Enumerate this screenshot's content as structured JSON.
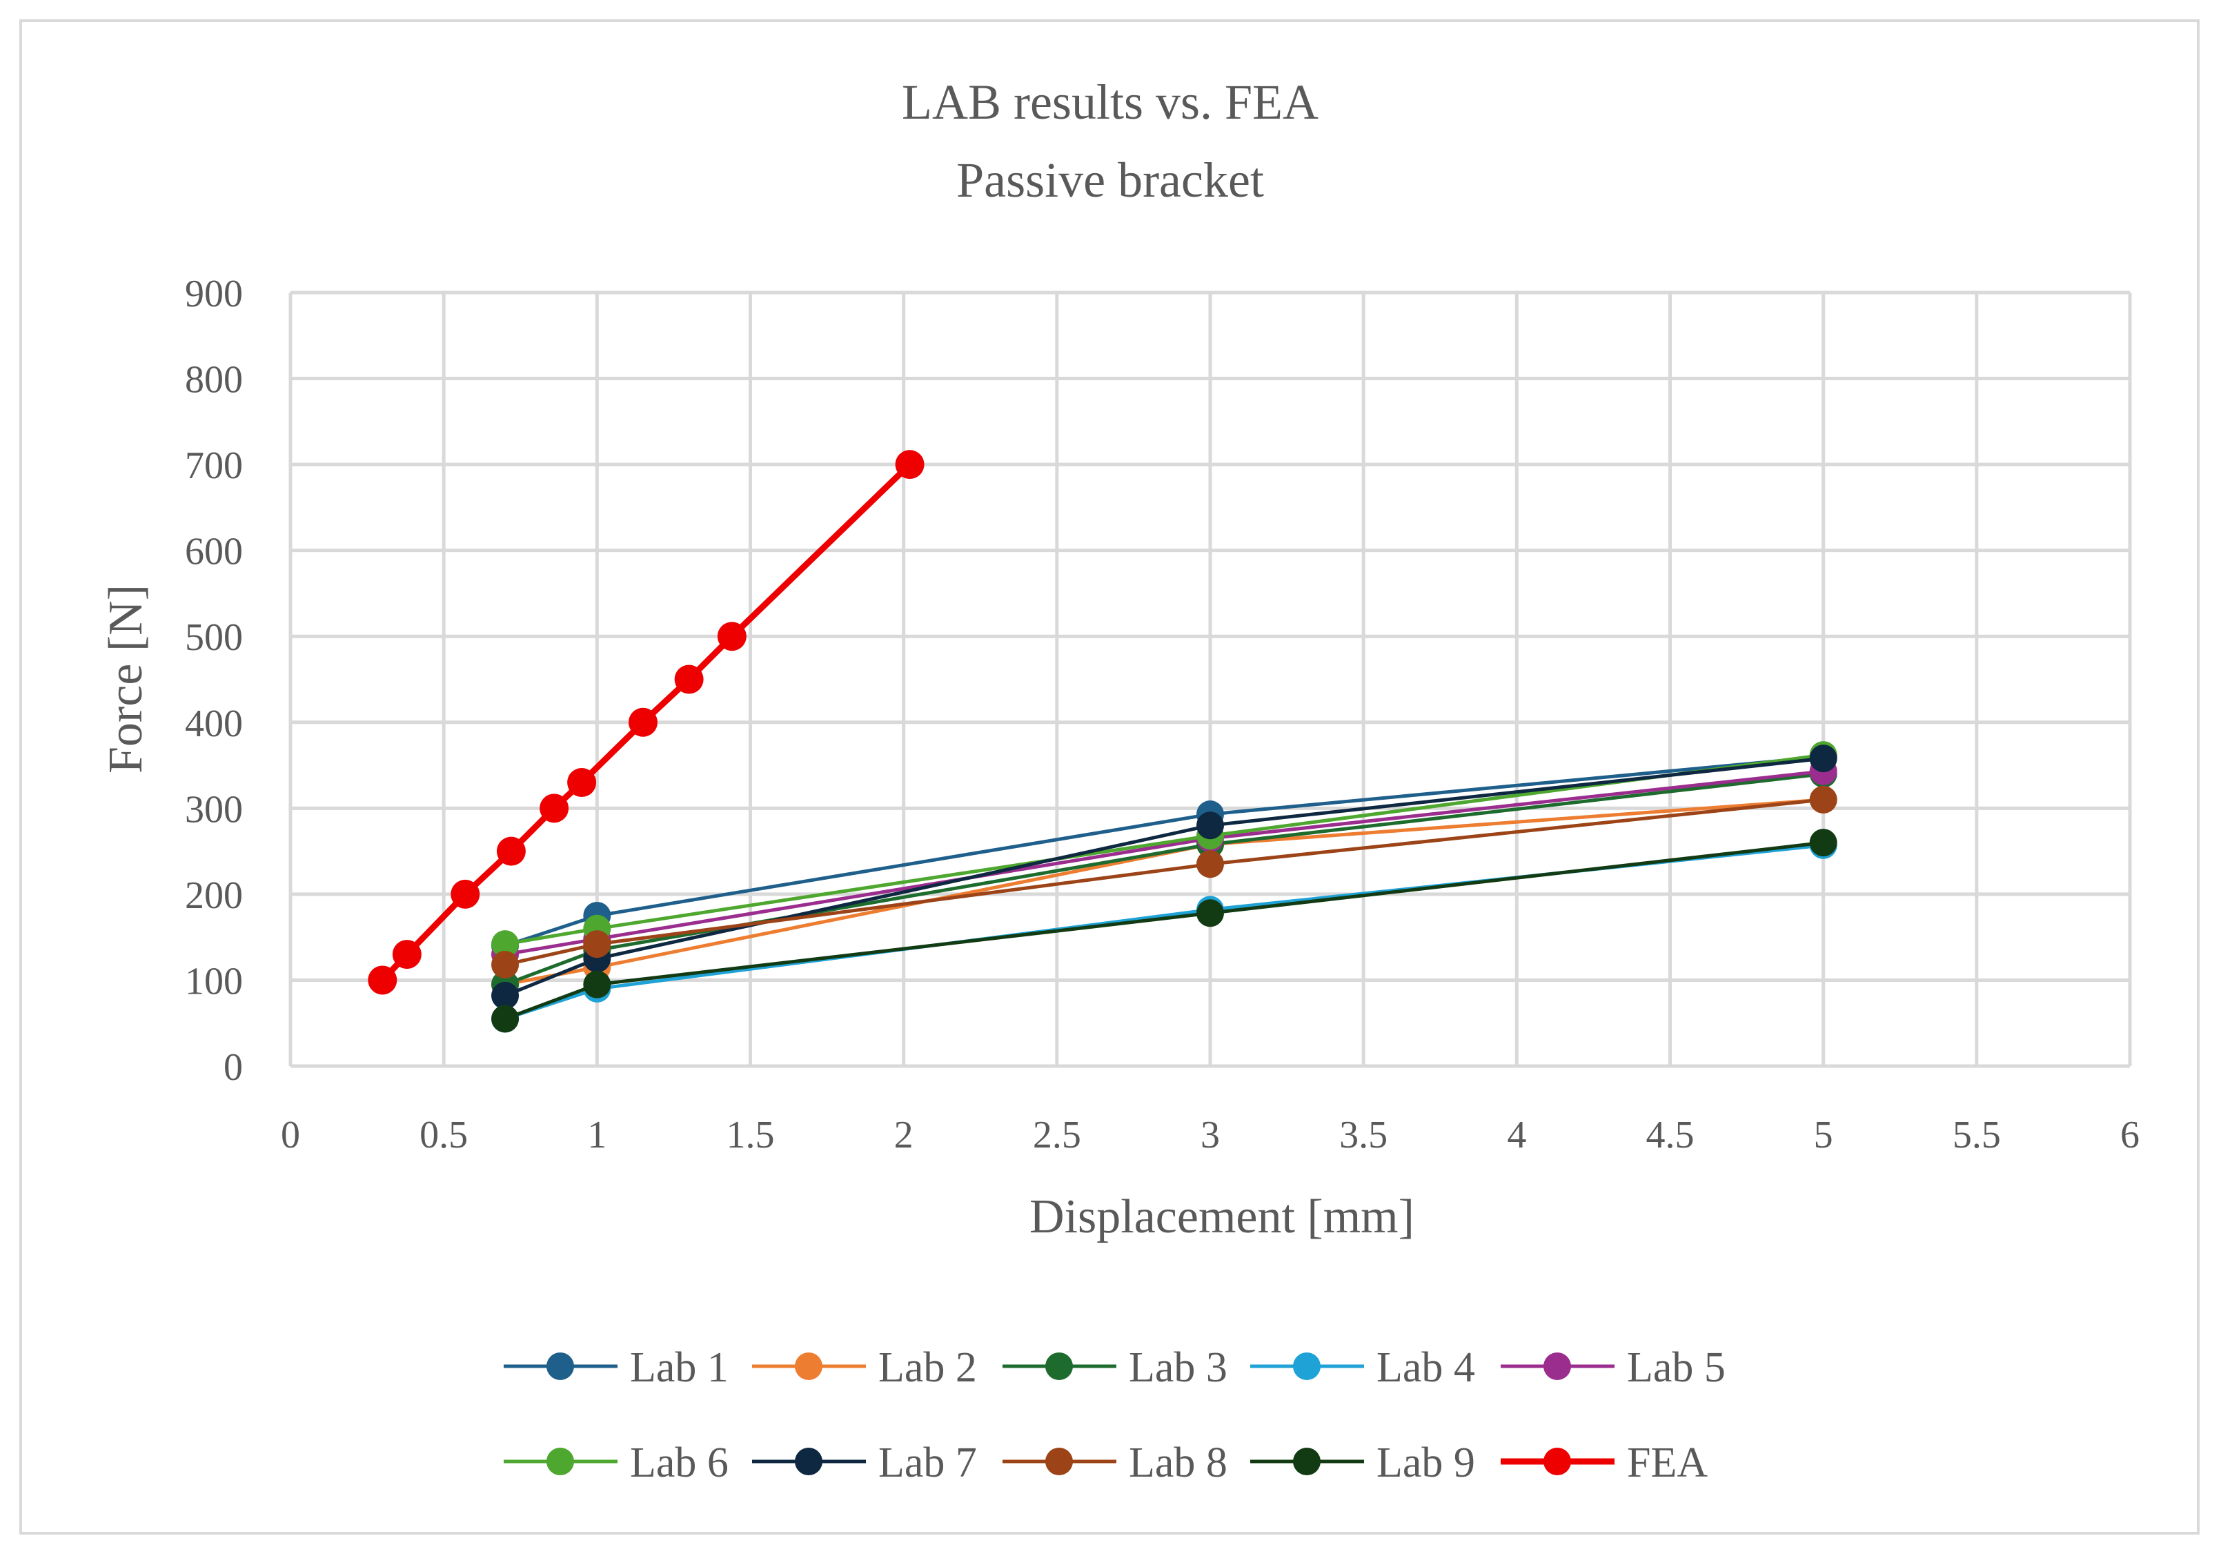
{
  "chart_data": {
    "type": "line",
    "title": "LAB results vs. FEA",
    "subtitle": "Passive bracket",
    "xlabel": "Displacement [mm]",
    "ylabel": "Force [N]",
    "xlim": [
      0,
      6
    ],
    "ylim": [
      0,
      900
    ],
    "x_ticks": [
      0,
      0.5,
      1,
      1.5,
      2,
      2.5,
      3,
      3.5,
      4,
      4.5,
      5,
      5.5,
      6
    ],
    "y_ticks": [
      0,
      100,
      200,
      300,
      400,
      500,
      600,
      700,
      800,
      900
    ],
    "grid": true,
    "legend_position": "bottom",
    "series": [
      {
        "name": "Lab 1",
        "color": "#1f5f8b",
        "x": [
          0.7,
          1,
          3,
          5
        ],
        "y": [
          140,
          175,
          293,
          360
        ]
      },
      {
        "name": "Lab 2",
        "color": "#ed7d31",
        "x": [
          0.7,
          1,
          3,
          5
        ],
        "y": [
          95,
          115,
          258,
          310
        ]
      },
      {
        "name": "Lab 3",
        "color": "#1e6b2e",
        "x": [
          0.7,
          1,
          3,
          5
        ],
        "y": [
          95,
          135,
          258,
          340
        ]
      },
      {
        "name": "Lab 4",
        "color": "#1fa2d6",
        "x": [
          0.7,
          1,
          3,
          5
        ],
        "y": [
          55,
          90,
          182,
          257
        ]
      },
      {
        "name": "Lab 5",
        "color": "#9b2d8f",
        "x": [
          0.7,
          1,
          3,
          5
        ],
        "y": [
          130,
          148,
          265,
          343
        ]
      },
      {
        "name": "Lab 6",
        "color": "#4ea72e",
        "x": [
          0.7,
          1,
          3,
          5
        ],
        "y": [
          142,
          160,
          268,
          362
        ]
      },
      {
        "name": "Lab 7",
        "color": "#0e2841",
        "x": [
          0.7,
          1,
          3,
          5
        ],
        "y": [
          82,
          125,
          280,
          358
        ]
      },
      {
        "name": "Lab 8",
        "color": "#9c4417",
        "x": [
          0.7,
          1,
          3,
          5
        ],
        "y": [
          118,
          142,
          235,
          310
        ]
      },
      {
        "name": "Lab 9",
        "color": "#123b14",
        "x": [
          0.7,
          1,
          3,
          5
        ],
        "y": [
          55,
          95,
          178,
          260
        ]
      },
      {
        "name": "FEA",
        "color": "#ee0000",
        "x": [
          0.3,
          0.38,
          0.57,
          0.72,
          0.86,
          0.95,
          1.15,
          1.3,
          1.44,
          2.02
        ],
        "y": [
          100,
          130,
          200,
          250,
          300,
          330,
          400,
          450,
          500,
          700
        ]
      }
    ]
  }
}
